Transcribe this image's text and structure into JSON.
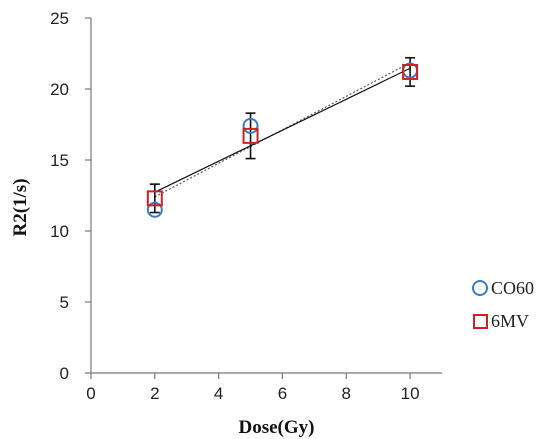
{
  "chart_data": {
    "type": "scatter",
    "title": "",
    "xlabel": "Dose(Gy)",
    "ylabel": "R2(1/s)",
    "xlim": [
      0,
      11
    ],
    "ylim": [
      0,
      25
    ],
    "xticks": [
      0,
      2,
      4,
      6,
      8,
      10
    ],
    "yticks": [
      0,
      5,
      10,
      15,
      20,
      25
    ],
    "grid": false,
    "legend_position": "right",
    "series": [
      {
        "name": "CO60",
        "marker": "circle",
        "color": "#3a7cc2",
        "x": [
          2,
          5,
          10
        ],
        "y": [
          11.5,
          17.4,
          21.3
        ],
        "trendline": {
          "type": "linear",
          "color": "#555555",
          "style": "dotted"
        }
      },
      {
        "name": "6MV",
        "marker": "square",
        "color": "#cc2222",
        "x": [
          2,
          5,
          10
        ],
        "y": [
          12.3,
          16.7,
          21.2
        ],
        "error": [
          1.0,
          1.6,
          1.0
        ],
        "trendline": {
          "type": "linear",
          "color": "#111111",
          "style": "solid"
        }
      }
    ]
  }
}
